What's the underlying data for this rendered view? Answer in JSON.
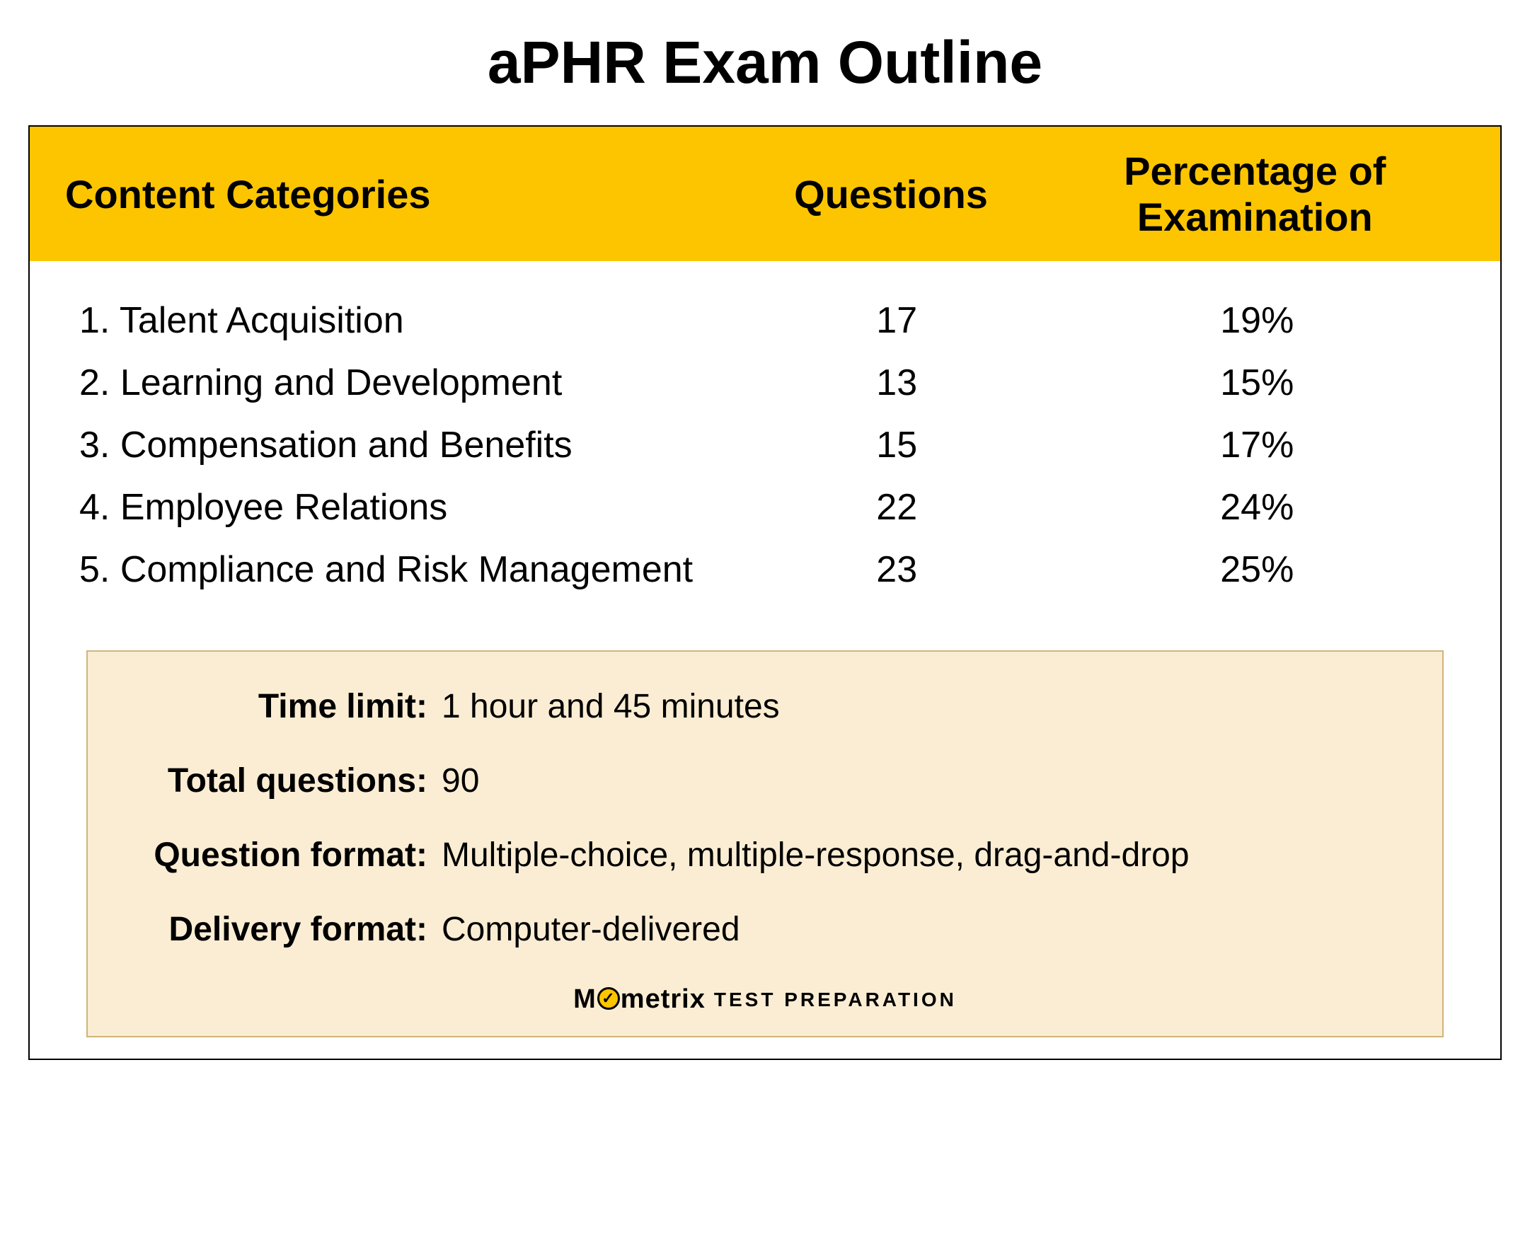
{
  "title": "aPHR Exam Outline",
  "table": {
    "header_bg": "#fdc500",
    "border_color": "#000000",
    "columns": [
      {
        "label": "Content Categories",
        "align": "left"
      },
      {
        "label": "Questions",
        "align": "center"
      },
      {
        "label": "Percentage of Examination",
        "align": "center"
      }
    ],
    "rows": [
      {
        "num": "1.",
        "category": "Talent Acquisition",
        "questions": "17",
        "percentage": "19%"
      },
      {
        "num": "2.",
        "category": "Learning and Development",
        "questions": "13",
        "percentage": "15%"
      },
      {
        "num": "3.",
        "category": "Compensation and Benefits",
        "questions": "15",
        "percentage": "17%"
      },
      {
        "num": "4.",
        "category": "Employee Relations",
        "questions": "22",
        "percentage": "24%"
      },
      {
        "num": "5.",
        "category": "Compliance and Risk Management",
        "questions": "23",
        "percentage": "25%"
      }
    ]
  },
  "info": {
    "bg_color": "#faedd3",
    "border_color": "#d0b57a",
    "items": [
      {
        "label": "Time limit:",
        "value": "1 hour and 45 minutes"
      },
      {
        "label": "Total questions:",
        "value": "90"
      },
      {
        "label": "Question format:",
        "value": "Multiple-choice, multiple-response, drag-and-drop"
      },
      {
        "label": "Delivery format:",
        "value": "Computer-delivered"
      }
    ]
  },
  "logo": {
    "brand_prefix": "M",
    "brand_suffix": "metrix",
    "tag": "TEST  PREPARATION",
    "check": "✓"
  }
}
